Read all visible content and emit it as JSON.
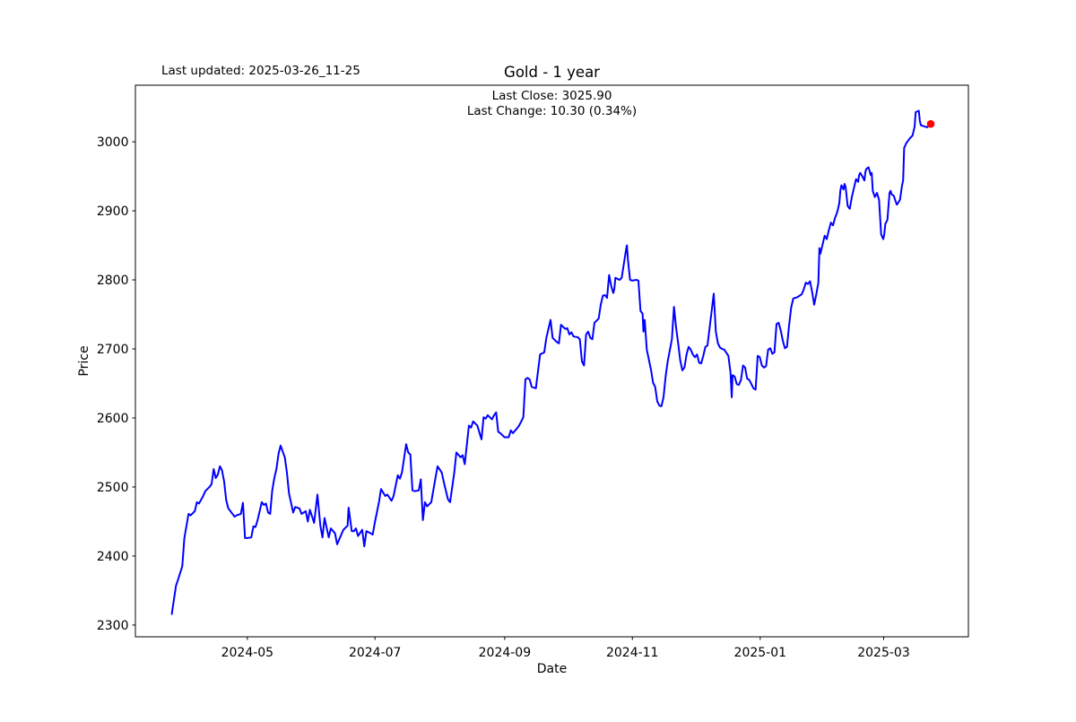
{
  "figure": {
    "last_updated": "Last updated: 2025-03-26_11-25",
    "title": "Gold - 1 year",
    "annotation_line1": "Last Close: 3025.90",
    "annotation_line2": "Last Change: 10.30 (0.34%)",
    "xlabel": "Date",
    "ylabel": "Price"
  },
  "chart_data": {
    "type": "line",
    "title": "Gold - 1 year",
    "xlabel": "Date",
    "ylabel": "Price",
    "legend": "none",
    "grid": false,
    "line_color": "#0000ff",
    "marker_color": "#ff0000",
    "x_unit": "days since 2024-03-26",
    "start_date": "2024-03-26",
    "last_point": {
      "date": "2025-03-26",
      "close": 3025.9,
      "change": 10.3,
      "change_pct": 0.34
    },
    "xlim": [
      -17.4,
      380.7
    ],
    "ylim": [
      2283,
      3082
    ],
    "xticks": {
      "values": [
        36.1,
        97.1,
        159.1,
        220.1,
        281.2,
        340.2
      ],
      "labels": [
        "2024-05",
        "2024-07",
        "2024-09",
        "2024-11",
        "2025-01",
        "2025-03"
      ]
    },
    "yticks": [
      2300,
      2400,
      2500,
      2600,
      2700,
      2800,
      2900,
      3000
    ],
    "points": [
      [
        0,
        2316
      ],
      [
        2,
        2357
      ],
      [
        3,
        2366
      ],
      [
        5,
        2385
      ],
      [
        6,
        2426
      ],
      [
        8,
        2461
      ],
      [
        9,
        2459
      ],
      [
        11,
        2465
      ],
      [
        12,
        2478
      ],
      [
        13,
        2476
      ],
      [
        15,
        2487
      ],
      [
        16,
        2494
      ],
      [
        18,
        2500
      ],
      [
        19,
        2504
      ],
      [
        20,
        2526
      ],
      [
        21,
        2513
      ],
      [
        22,
        2518
      ],
      [
        23,
        2530
      ],
      [
        24,
        2524
      ],
      [
        25,
        2508
      ],
      [
        26,
        2481
      ],
      [
        27,
        2469
      ],
      [
        28,
        2465
      ],
      [
        30,
        2457
      ],
      [
        31,
        2459
      ],
      [
        33,
        2461
      ],
      [
        34,
        2477
      ],
      [
        35,
        2426
      ],
      [
        36,
        2426
      ],
      [
        38,
        2427
      ],
      [
        39,
        2443
      ],
      [
        40,
        2442
      ],
      [
        41,
        2452
      ],
      [
        43,
        2478
      ],
      [
        44,
        2474
      ],
      [
        45,
        2476
      ],
      [
        46,
        2463
      ],
      [
        47,
        2461
      ],
      [
        48,
        2495
      ],
      [
        49,
        2513
      ],
      [
        50,
        2526
      ],
      [
        51,
        2548
      ],
      [
        52,
        2560
      ],
      [
        54,
        2543
      ],
      [
        55,
        2521
      ],
      [
        56,
        2491
      ],
      [
        58,
        2463
      ],
      [
        59,
        2471
      ],
      [
        61,
        2469
      ],
      [
        62,
        2461
      ],
      [
        64,
        2465
      ],
      [
        65,
        2450
      ],
      [
        66,
        2467
      ],
      [
        68,
        2448
      ],
      [
        69.6,
        2489
      ],
      [
        71,
        2444
      ],
      [
        72,
        2427
      ],
      [
        73,
        2455
      ],
      [
        75,
        2427
      ],
      [
        76,
        2440
      ],
      [
        78,
        2433
      ],
      [
        79,
        2417
      ],
      [
        81,
        2431
      ],
      [
        82,
        2438
      ],
      [
        84,
        2444
      ],
      [
        84.5,
        2470
      ],
      [
        86,
        2436
      ],
      [
        87,
        2436
      ],
      [
        88,
        2440
      ],
      [
        89,
        2429
      ],
      [
        91,
        2438
      ],
      [
        92,
        2414
      ],
      [
        93,
        2436
      ],
      [
        95,
        2433
      ],
      [
        96,
        2431
      ],
      [
        97,
        2448
      ],
      [
        99,
        2478
      ],
      [
        100,
        2497
      ],
      [
        102,
        2487
      ],
      [
        103,
        2489
      ],
      [
        105,
        2480
      ],
      [
        106,
        2487
      ],
      [
        108,
        2517
      ],
      [
        109,
        2512
      ],
      [
        110,
        2521
      ],
      [
        112,
        2562
      ],
      [
        113,
        2550
      ],
      [
        114,
        2547
      ],
      [
        115,
        2495
      ],
      [
        116,
        2494
      ],
      [
        118,
        2495
      ],
      [
        119,
        2511
      ],
      [
        120,
        2452
      ],
      [
        121,
        2478
      ],
      [
        122,
        2472
      ],
      [
        124,
        2478
      ],
      [
        126,
        2513
      ],
      [
        127,
        2530
      ],
      [
        129,
        2521
      ],
      [
        130,
        2507
      ],
      [
        132,
        2482
      ],
      [
        133,
        2478
      ],
      [
        135,
        2521
      ],
      [
        136,
        2550
      ],
      [
        138,
        2543
      ],
      [
        139,
        2546
      ],
      [
        140,
        2533
      ],
      [
        142,
        2589
      ],
      [
        143,
        2586
      ],
      [
        144,
        2595
      ],
      [
        146,
        2589
      ],
      [
        148,
        2569
      ],
      [
        149,
        2601
      ],
      [
        150,
        2599
      ],
      [
        151,
        2604
      ],
      [
        153,
        2598
      ],
      [
        154,
        2604
      ],
      [
        155,
        2608
      ],
      [
        156,
        2580
      ],
      [
        157,
        2578
      ],
      [
        159,
        2572
      ],
      [
        161,
        2572
      ],
      [
        162,
        2582
      ],
      [
        163,
        2578
      ],
      [
        165,
        2585
      ],
      [
        166,
        2589
      ],
      [
        168,
        2601
      ],
      [
        169,
        2656
      ],
      [
        170,
        2658
      ],
      [
        171,
        2656
      ],
      [
        172,
        2645
      ],
      [
        174,
        2643
      ],
      [
        176,
        2692
      ],
      [
        178,
        2695
      ],
      [
        179,
        2716
      ],
      [
        181,
        2742
      ],
      [
        182,
        2716
      ],
      [
        184,
        2710
      ],
      [
        185,
        2708
      ],
      [
        186,
        2735
      ],
      [
        188,
        2729
      ],
      [
        189,
        2730
      ],
      [
        190,
        2721
      ],
      [
        191,
        2724
      ],
      [
        192,
        2718
      ],
      [
        194,
        2717
      ],
      [
        195,
        2714
      ],
      [
        196,
        2682
      ],
      [
        197,
        2676
      ],
      [
        198,
        2721
      ],
      [
        199,
        2725
      ],
      [
        200,
        2716
      ],
      [
        201,
        2714
      ],
      [
        202,
        2738
      ],
      [
        204,
        2744
      ],
      [
        205,
        2764
      ],
      [
        206,
        2777
      ],
      [
        207,
        2778
      ],
      [
        208,
        2774
      ],
      [
        209,
        2807
      ],
      [
        210,
        2791
      ],
      [
        211,
        2781
      ],
      [
        211.5,
        2787
      ],
      [
        212,
        2803
      ],
      [
        214,
        2800
      ],
      [
        215,
        2803
      ],
      [
        217,
        2842
      ],
      [
        217.5,
        2850
      ],
      [
        218,
        2829
      ],
      [
        219,
        2800
      ],
      [
        220,
        2799
      ],
      [
        222,
        2800
      ],
      [
        223,
        2799
      ],
      [
        224,
        2755
      ],
      [
        225,
        2751
      ],
      [
        225.4,
        2725
      ],
      [
        226,
        2742
      ],
      [
        227,
        2699
      ],
      [
        229,
        2670
      ],
      [
        230,
        2651
      ],
      [
        231,
        2645
      ],
      [
        232,
        2624
      ],
      [
        233,
        2618
      ],
      [
        234,
        2617
      ],
      [
        235,
        2630
      ],
      [
        236,
        2660
      ],
      [
        237,
        2682
      ],
      [
        239,
        2714
      ],
      [
        240,
        2761
      ],
      [
        241,
        2731
      ],
      [
        242,
        2708
      ],
      [
        243,
        2683
      ],
      [
        244,
        2669
      ],
      [
        245,
        2673
      ],
      [
        246,
        2692
      ],
      [
        247,
        2703
      ],
      [
        248,
        2699
      ],
      [
        249,
        2692
      ],
      [
        250,
        2688
      ],
      [
        251,
        2692
      ],
      [
        252,
        2680
      ],
      [
        253,
        2679
      ],
      [
        254,
        2690
      ],
      [
        255,
        2703
      ],
      [
        256,
        2705
      ],
      [
        259,
        2780
      ],
      [
        260,
        2725
      ],
      [
        261,
        2708
      ],
      [
        262,
        2702
      ],
      [
        263,
        2700
      ],
      [
        264,
        2699
      ],
      [
        266,
        2690
      ],
      [
        267,
        2666
      ],
      [
        267.6,
        2630
      ],
      [
        268,
        2662
      ],
      [
        269,
        2660
      ],
      [
        270,
        2649
      ],
      [
        271,
        2648
      ],
      [
        272,
        2655
      ],
      [
        273,
        2676
      ],
      [
        274,
        2673
      ],
      [
        274.5,
        2664
      ],
      [
        275,
        2657
      ],
      [
        276,
        2655
      ],
      [
        278,
        2643
      ],
      [
        279,
        2641
      ],
      [
        280,
        2690
      ],
      [
        281,
        2688
      ],
      [
        282,
        2676
      ],
      [
        283,
        2673
      ],
      [
        284,
        2675
      ],
      [
        285,
        2699
      ],
      [
        286,
        2701
      ],
      [
        287,
        2693
      ],
      [
        288,
        2695
      ],
      [
        289,
        2736
      ],
      [
        290,
        2738
      ],
      [
        291,
        2727
      ],
      [
        292,
        2712
      ],
      [
        293,
        2701
      ],
      [
        294,
        2703
      ],
      [
        295,
        2734
      ],
      [
        296,
        2760
      ],
      [
        297,
        2773
      ],
      [
        298,
        2774
      ],
      [
        299,
        2775
      ],
      [
        300,
        2777
      ],
      [
        301,
        2779
      ],
      [
        302,
        2786
      ],
      [
        303,
        2796
      ],
      [
        304,
        2794
      ],
      [
        305,
        2798
      ],
      [
        306,
        2783
      ],
      [
        307,
        2764
      ],
      [
        308,
        2779
      ],
      [
        309,
        2796
      ],
      [
        309.5,
        2846
      ],
      [
        310,
        2838
      ],
      [
        311,
        2851
      ],
      [
        312,
        2864
      ],
      [
        313,
        2859
      ],
      [
        314,
        2872
      ],
      [
        315,
        2883
      ],
      [
        316,
        2879
      ],
      [
        317,
        2890
      ],
      [
        318,
        2898
      ],
      [
        319,
        2911
      ],
      [
        319.5,
        2929
      ],
      [
        320,
        2937
      ],
      [
        321,
        2931
      ],
      [
        321.5,
        2939
      ],
      [
        322,
        2935
      ],
      [
        323,
        2907
      ],
      [
        324,
        2903
      ],
      [
        325,
        2920
      ],
      [
        326,
        2933
      ],
      [
        327,
        2946
      ],
      [
        328,
        2942
      ],
      [
        328.5,
        2952
      ],
      [
        329,
        2955
      ],
      [
        330,
        2950
      ],
      [
        331,
        2944
      ],
      [
        331.5,
        2957
      ],
      [
        332,
        2961
      ],
      [
        333,
        2963
      ],
      [
        334,
        2952
      ],
      [
        334.5,
        2955
      ],
      [
        335,
        2929
      ],
      [
        336,
        2920
      ],
      [
        337,
        2926
      ],
      [
        338,
        2916
      ],
      [
        339,
        2866
      ],
      [
        340,
        2859
      ],
      [
        340.5,
        2866
      ],
      [
        341,
        2881
      ],
      [
        342,
        2887
      ],
      [
        343,
        2926
      ],
      [
        343.5,
        2929
      ],
      [
        344,
        2924
      ],
      [
        345,
        2922
      ],
      [
        346,
        2913
      ],
      [
        346.5,
        2909
      ],
      [
        347,
        2911
      ],
      [
        348,
        2916
      ],
      [
        349,
        2937
      ],
      [
        349.5,
        2944
      ],
      [
        350,
        2991
      ],
      [
        351,
        2998
      ],
      [
        352,
        3002
      ],
      [
        353,
        3006
      ],
      [
        354,
        3009
      ],
      [
        355,
        3022
      ],
      [
        355.5,
        3043
      ],
      [
        357,
        3045
      ],
      [
        357.5,
        3030
      ],
      [
        358,
        3024
      ],
      [
        360,
        3022
      ],
      [
        361,
        3021
      ],
      [
        362.7,
        3025.9
      ]
    ]
  }
}
